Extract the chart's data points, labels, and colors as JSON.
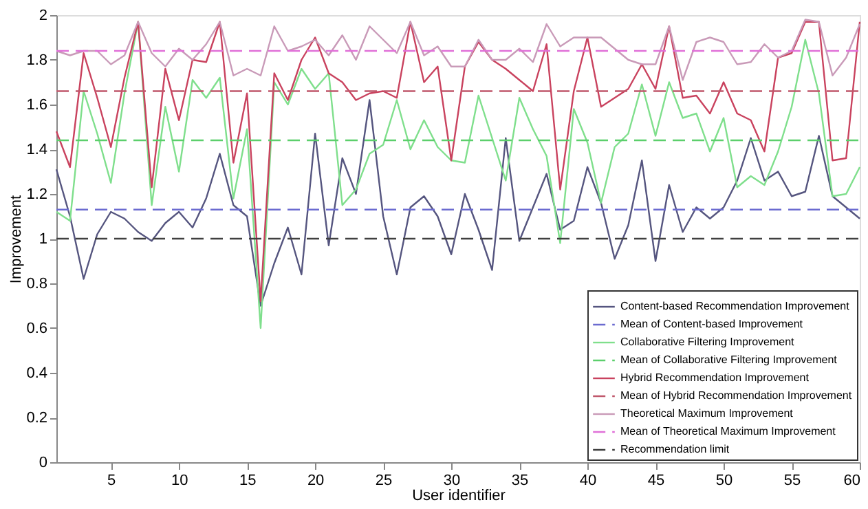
{
  "chart_data": {
    "type": "line",
    "xlabel": "User identifier",
    "ylabel": "Improvement",
    "x": [
      1,
      2,
      3,
      4,
      5,
      6,
      7,
      8,
      9,
      10,
      11,
      12,
      13,
      14,
      15,
      16,
      17,
      18,
      19,
      20,
      21,
      22,
      23,
      24,
      25,
      26,
      27,
      28,
      29,
      30,
      31,
      32,
      33,
      34,
      35,
      36,
      37,
      38,
      39,
      40,
      41,
      42,
      43,
      44,
      45,
      46,
      47,
      48,
      49,
      50,
      51,
      52,
      53,
      54,
      55,
      56,
      57,
      58,
      59,
      60
    ],
    "series": [
      {
        "name": "Content-based Recommendation Improvement",
        "color": "#55557f",
        "values": [
          1.31,
          1.1,
          0.82,
          1.02,
          1.12,
          1.09,
          1.03,
          0.99,
          1.07,
          1.12,
          1.05,
          1.18,
          1.38,
          1.15,
          1.1,
          0.7,
          0.89,
          1.05,
          0.84,
          1.47,
          0.97,
          1.36,
          1.2,
          1.62,
          1.1,
          0.84,
          1.14,
          1.19,
          1.1,
          0.93,
          1.2,
          1.04,
          0.86,
          1.45,
          0.99,
          1.14,
          1.29,
          1.04,
          1.08,
          1.32,
          1.16,
          0.91,
          1.06,
          1.35,
          0.9,
          1.24,
          1.03,
          1.14,
          1.09,
          1.14,
          1.26,
          1.45,
          1.26,
          1.3,
          1.19,
          1.21,
          1.46,
          1.19,
          1.14,
          1.09
        ]
      },
      {
        "name": "Collaborative Filtering Improvement",
        "color": "#7fdf8c",
        "values": [
          1.12,
          1.08,
          1.66,
          1.47,
          1.25,
          1.65,
          1.97,
          1.15,
          1.59,
          1.3,
          1.71,
          1.63,
          1.72,
          1.18,
          1.49,
          0.6,
          1.7,
          1.6,
          1.76,
          1.67,
          1.74,
          1.15,
          1.22,
          1.38,
          1.42,
          1.62,
          1.4,
          1.53,
          1.41,
          1.35,
          1.34,
          1.64,
          1.45,
          1.26,
          1.63,
          1.49,
          1.37,
          0.98,
          1.58,
          1.43,
          1.16,
          1.41,
          1.47,
          1.69,
          1.46,
          1.7,
          1.54,
          1.56,
          1.39,
          1.54,
          1.23,
          1.28,
          1.24,
          1.39,
          1.59,
          1.89,
          1.65,
          1.19,
          1.2,
          1.32
        ]
      },
      {
        "name": "Hybrid Recommendation Improvement",
        "color": "#c9425e",
        "values": [
          1.48,
          1.32,
          1.83,
          1.63,
          1.41,
          1.72,
          1.97,
          1.23,
          1.76,
          1.53,
          1.8,
          1.79,
          1.97,
          1.34,
          1.65,
          0.72,
          1.74,
          1.62,
          1.8,
          1.9,
          1.74,
          1.7,
          1.62,
          1.65,
          1.66,
          1.63,
          1.97,
          1.7,
          1.77,
          1.35,
          1.77,
          1.88,
          1.8,
          1.76,
          1.71,
          1.66,
          1.87,
          1.22,
          1.66,
          1.9,
          1.59,
          1.63,
          1.67,
          1.78,
          1.67,
          1.95,
          1.63,
          1.64,
          1.56,
          1.7,
          1.56,
          1.53,
          1.39,
          1.81,
          1.83,
          1.97,
          1.97,
          1.35,
          1.36,
          1.97
        ]
      },
      {
        "name": "Theoretical Maximum Improvement",
        "color": "#c99ab8",
        "values": [
          1.84,
          1.82,
          1.84,
          1.84,
          1.78,
          1.82,
          1.97,
          1.83,
          1.77,
          1.85,
          1.8,
          1.87,
          1.97,
          1.73,
          1.76,
          1.73,
          1.95,
          1.84,
          1.86,
          1.89,
          1.82,
          1.91,
          1.8,
          1.95,
          1.89,
          1.83,
          1.97,
          1.82,
          1.86,
          1.77,
          1.77,
          1.89,
          1.8,
          1.8,
          1.85,
          1.79,
          1.96,
          1.86,
          1.9,
          1.9,
          1.9,
          1.85,
          1.8,
          1.78,
          1.78,
          1.95,
          1.71,
          1.88,
          1.9,
          1.88,
          1.78,
          1.79,
          1.87,
          1.81,
          1.84,
          1.98,
          1.97,
          1.73,
          1.81,
          1.96
        ]
      }
    ],
    "ref_lines": [
      {
        "axis": "y",
        "value": 1.13,
        "label": "Mean of Content-based Improvement",
        "color": "#6b6bd0",
        "line_style": "dashed"
      },
      {
        "axis": "y",
        "value": 1.44,
        "label": "Mean of Collaborative Filtering Improvement",
        "color": "#5ccf6c",
        "line_style": "dashed"
      },
      {
        "axis": "y",
        "value": 1.66,
        "label": "Mean of Hybrid Recommendation Improvement",
        "color": "#c0586c",
        "line_style": "dashed"
      },
      {
        "axis": "y",
        "value": 1.84,
        "label": "Mean of Theoretical Maximum Improvement",
        "color": "#e070d8",
        "line_style": "dashed"
      },
      {
        "axis": "y",
        "value": 1.0,
        "label": "Recommendation limit",
        "color": "#404040",
        "line_style": "dashed"
      }
    ],
    "xlim": [
      1,
      60
    ],
    "xticks": [
      5,
      10,
      15,
      20,
      25,
      30,
      35,
      40,
      45,
      50,
      55,
      60
    ],
    "ylim": [
      0,
      2
    ],
    "yticks": [
      0,
      0.2,
      0.4,
      0.6,
      0.8,
      1,
      1.2,
      1.4,
      1.6,
      1.8,
      2
    ],
    "grid": false,
    "legend": "bottom right",
    "marker": "none",
    "line_style": "solid"
  }
}
